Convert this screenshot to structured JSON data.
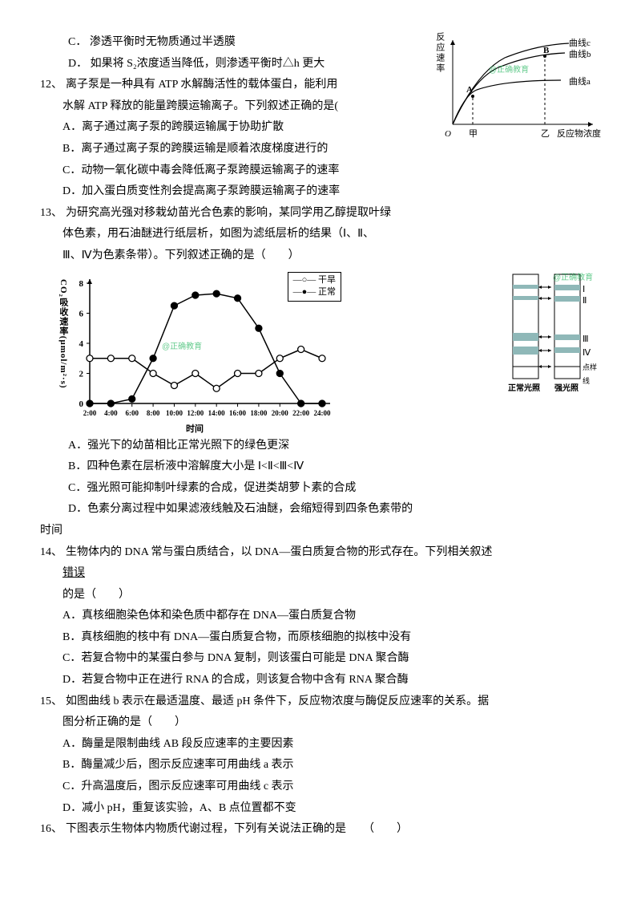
{
  "q11": {
    "optC": "C．  渗透平衡时无物质通过半透膜",
    "optD": "D．  如果将 S₂浓度适当降低，则渗透平衡时△h 更大"
  },
  "q12": {
    "num": "12、",
    "stem1": "离子泵是一种具有 ATP 水解酶活性的载体蛋白，能利用",
    "stem2": "水解 ATP 释放的能量跨膜运输离子。下列叙述正确的是(",
    "optA": "A．离子通过离子泵的跨膜运输属于协助扩散",
    "optB": "B．离子通过离子泵的跨膜运输是顺着浓度梯度进行的",
    "optC": "C．动物一氧化碳中毒会降低离子泵跨膜运输离子的速率",
    "optD": "D．加入蛋白质变性剂会提高离子泵跨膜运输离子的速率"
  },
  "q13": {
    "num": "13、",
    "stem1": "为研究高光强对移栽幼苗光合色素的影响，某同学用乙醇提取叶绿",
    "stem2": "体色素，用石油醚进行纸层析，如图为滤纸层析的结果（Ⅰ、Ⅱ、",
    "stem3": "Ⅲ、Ⅳ为色素条带）。下列叙述正确的是（　　）",
    "optA": "A．强光下的幼苗相比正常光照下的绿色更深",
    "optB": "B．四种色素在层析液中溶解度大小是 Ⅰ<Ⅱ<Ⅲ<Ⅳ",
    "optC": "C．强光照可能抑制叶绿素的合成，促进类胡萝卜素的合成",
    "optD": "D．色素分离过程中如果滤液线触及石油醚，会缩短得到四条色素带的",
    "tail": "时间"
  },
  "q14": {
    "num": "14、",
    "stem1": "生物体内的 DNA 常与蛋白质结合，以 DNA—蛋白质复合物的形式存在。下列相关叙述",
    "stem2": "错误",
    "stem3": "的是（　　）",
    "optA": "A．真核细胞染色体和染色质中都存在 DNA—蛋白质复合物",
    "optB": "B．真核细胞的核中有 DNA—蛋白质复合物，而原核细胞的拟核中没有",
    "optC": "C．若复合物中的某蛋白参与 DNA 复制，则该蛋白可能是 DNA 聚合酶",
    "optD": "D．若复合物中正在进行 RNA 的合成，则该复合物中含有 RNA 聚合酶"
  },
  "q15": {
    "num": "15、",
    "stem1": "如图曲线 b 表示在最适温度、最适 pH 条件下，反应物浓度与酶促反应速率的关系。据",
    "stem2": "图分析正确的是（　　）",
    "optA": "A．酶量是限制曲线 AB 段反应速率的主要因素",
    "optB": "B．酶量减少后，图示反应速率可用曲线 a 表示",
    "optC": "C．升高温度后，图示反应速率可用曲线 c 表示",
    "optD": "D．减小 pH，重复该实验，A、B 点位置都不变"
  },
  "q16": {
    "num": "16、",
    "stem": "下图表示生物体内物质代谢过程，下列有关说法正确的是　　（　　）"
  },
  "chart1": {
    "ylabel": "反应速率",
    "xlabel": "反应物浓度",
    "c_a": "曲线a",
    "c_b": "曲线b",
    "c_c": "曲线c",
    "pA": "A",
    "pB": "B",
    "t1": "甲",
    "t2": "乙",
    "watermark": "@正确教育",
    "axis_color": "#000",
    "curve_color": "#000"
  },
  "chart2": {
    "ylabel": "CO₂吸收速率(μmol/m²·s)",
    "xlabel": "时间",
    "leg1": "干旱",
    "leg2": "正常",
    "watermark": "@正确教育",
    "yticks": [
      "0",
      "2",
      "4",
      "6",
      "8"
    ],
    "xticks": [
      "2:00",
      "4:00",
      "6:00",
      "8:00",
      "10:00",
      "12:00",
      "14:00",
      "16:00",
      "18:00",
      "20:00",
      "22:00",
      "24:00"
    ],
    "open_pts": [
      [
        0,
        3
      ],
      [
        1,
        3
      ],
      [
        2,
        3
      ],
      [
        3,
        2
      ],
      [
        4,
        1.2
      ],
      [
        5,
        2
      ],
      [
        6,
        1
      ],
      [
        7,
        2
      ],
      [
        8,
        2
      ],
      [
        9,
        3
      ],
      [
        10,
        3.6
      ],
      [
        11,
        3
      ]
    ],
    "fill_pts": [
      [
        0,
        0
      ],
      [
        1,
        0
      ],
      [
        2,
        0.3
      ],
      [
        3,
        3
      ],
      [
        4,
        6.5
      ],
      [
        5,
        7.2
      ],
      [
        6,
        7.3
      ],
      [
        7,
        7
      ],
      [
        8,
        5
      ],
      [
        9,
        2
      ],
      [
        10,
        0
      ],
      [
        11,
        0
      ]
    ]
  },
  "chart3": {
    "b1": "Ⅰ",
    "b2": "Ⅱ",
    "b3": "Ⅲ",
    "b4": "Ⅳ",
    "dot": "点样线",
    "l1": "正常光照",
    "l2": "强光照",
    "watermark": "@正确教育",
    "band_color": "#8fb8b8",
    "line_color": "#000"
  }
}
